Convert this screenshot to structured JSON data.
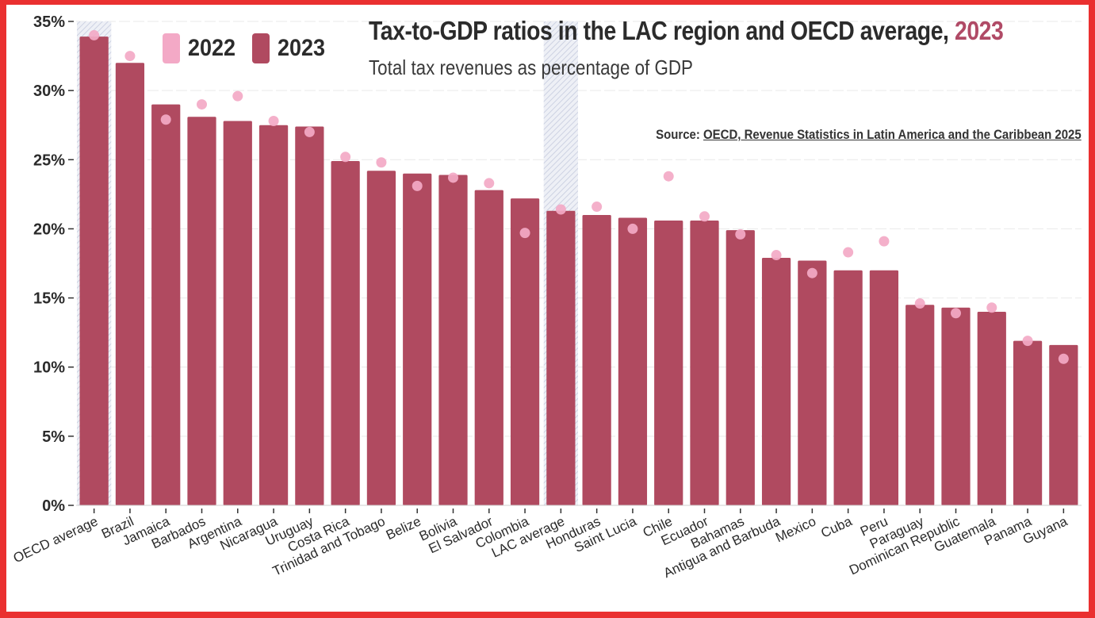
{
  "colors": {
    "frame": "#ea3030",
    "bar_2023": "#b04a60",
    "dot_2022": "#f3a9c6",
    "highlight_band": "#dfe3ee",
    "title_accent": "#b04a66",
    "text": "#2b2b2b"
  },
  "header": {
    "title_main": "Tax-to-GDP ratios in the LAC region and OECD average, ",
    "title_year": "2023",
    "subtitle": "Total tax revenues as percentage of GDP",
    "source_prefix": "Source: ",
    "source_link": "OECD, Revenue Statistics in Latin America and the Caribbean 2025"
  },
  "legend": {
    "items": [
      {
        "label": "2022",
        "color": "#f3a9c6"
      },
      {
        "label": "2023",
        "color": "#b04a60"
      }
    ]
  },
  "chart_data": {
    "type": "bar",
    "title": "Tax-to-GDP ratios in the LAC region and OECD average, 2023",
    "subtitle": "Total tax revenues as percentage of GDP",
    "xlabel": "",
    "ylabel": "",
    "ylim": [
      0,
      35
    ],
    "yticks": [
      0,
      5,
      10,
      15,
      20,
      25,
      30,
      35
    ],
    "ytick_labels": [
      "0%",
      "5%",
      "10%",
      "15%",
      "20%",
      "25%",
      "30%",
      "35%"
    ],
    "grid": true,
    "legend_position": "top-left",
    "highlighted_categories": [
      "OECD average",
      "LAC average"
    ],
    "categories": [
      "OECD average",
      "Brazil",
      "Jamaica",
      "Barbados",
      "Argentina",
      "Nicaragua",
      "Uruguay",
      "Costa Rica",
      "Trinidad and Tobago",
      "Belize",
      "Bolivia",
      "El Salvador",
      "Colombia",
      "LAC average",
      "Honduras",
      "Saint Lucia",
      "Chile",
      "Ecuador",
      "Bahamas",
      "Antigua and Barbuda",
      "Mexico",
      "Cuba",
      "Peru",
      "Paraguay",
      "Dominican Republic",
      "Guatemala",
      "Panama",
      "Guyana"
    ],
    "series": [
      {
        "name": "2023",
        "mark": "bar",
        "values": [
          33.9,
          32.0,
          29.0,
          28.1,
          27.8,
          27.5,
          27.4,
          24.9,
          24.2,
          24.0,
          23.9,
          22.8,
          22.2,
          21.3,
          21.0,
          20.8,
          20.6,
          20.6,
          19.9,
          17.9,
          17.7,
          17.0,
          17.0,
          14.5,
          14.3,
          14.0,
          11.9,
          11.6
        ]
      },
      {
        "name": "2022",
        "mark": "dot",
        "values": [
          34.0,
          32.5,
          27.9,
          29.0,
          29.6,
          27.8,
          27.0,
          25.2,
          24.8,
          23.1,
          23.7,
          23.3,
          19.7,
          21.4,
          21.6,
          20.0,
          23.8,
          20.9,
          19.6,
          18.1,
          16.8,
          18.3,
          19.1,
          14.6,
          13.9,
          14.3,
          11.9,
          10.6
        ]
      }
    ]
  }
}
